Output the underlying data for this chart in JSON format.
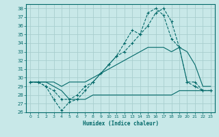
{
  "xlabel": "Humidex (Indice chaleur)",
  "bg_color": "#c8e8e8",
  "grid_color": "#a8cece",
  "line_color": "#006868",
  "ylim": [
    26,
    38.5
  ],
  "xlim": [
    -0.5,
    23.5
  ],
  "yticks": [
    26,
    27,
    28,
    29,
    30,
    31,
    32,
    33,
    34,
    35,
    36,
    37,
    38
  ],
  "xticks": [
    0,
    1,
    2,
    3,
    4,
    5,
    6,
    7,
    8,
    9,
    10,
    11,
    12,
    13,
    14,
    15,
    16,
    17,
    18,
    19,
    20,
    21,
    22,
    23
  ],
  "line1_x": [
    0,
    1,
    2,
    3,
    4,
    5,
    6,
    7,
    8,
    9,
    10,
    11,
    12,
    13,
    14,
    15,
    16,
    17,
    18,
    19,
    20,
    21,
    22,
    23
  ],
  "line1_y": [
    29.5,
    29.5,
    29.0,
    27.5,
    26.2,
    27.2,
    27.5,
    28.5,
    29.5,
    30.5,
    31.5,
    32.5,
    34.0,
    35.5,
    35.0,
    37.5,
    38.0,
    37.2,
    34.5,
    33.5,
    29.5,
    29.5,
    28.5,
    28.5
  ],
  "line2_x": [
    0,
    1,
    2,
    3,
    4,
    5,
    6,
    7,
    8,
    9,
    10,
    11,
    12,
    13,
    14,
    15,
    16,
    17,
    18,
    19,
    20,
    21,
    22,
    23
  ],
  "line2_y": [
    29.5,
    29.5,
    29.0,
    28.5,
    27.5,
    27.5,
    28.0,
    29.0,
    29.5,
    30.5,
    31.5,
    32.5,
    33.0,
    34.0,
    35.0,
    36.0,
    37.5,
    38.0,
    36.5,
    33.5,
    29.5,
    29.0,
    28.5,
    28.5
  ],
  "line3_x": [
    0,
    1,
    2,
    3,
    4,
    5,
    6,
    7,
    8,
    9,
    10,
    11,
    12,
    13,
    14,
    15,
    16,
    17,
    18,
    19,
    20,
    21,
    22,
    23
  ],
  "line3_y": [
    29.5,
    29.5,
    29.5,
    29.5,
    29.0,
    29.5,
    29.5,
    29.5,
    30.0,
    30.5,
    31.0,
    31.5,
    32.0,
    32.5,
    33.0,
    33.5,
    33.5,
    33.5,
    33.0,
    33.5,
    33.0,
    31.5,
    29.0,
    29.0
  ],
  "line4_x": [
    0,
    1,
    2,
    3,
    4,
    5,
    6,
    7,
    8,
    9,
    10,
    11,
    12,
    13,
    14,
    15,
    16,
    17,
    18,
    19,
    20,
    21,
    22,
    23
  ],
  "line4_y": [
    29.5,
    29.5,
    29.5,
    29.0,
    28.5,
    27.5,
    27.5,
    27.5,
    28.0,
    28.0,
    28.0,
    28.0,
    28.0,
    28.0,
    28.0,
    28.0,
    28.0,
    28.0,
    28.0,
    28.5,
    28.5,
    28.5,
    28.5,
    28.5
  ]
}
